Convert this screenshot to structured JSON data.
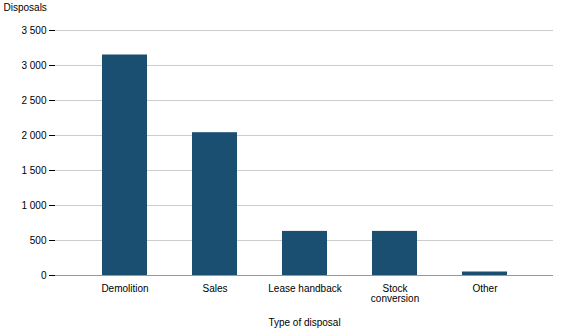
{
  "chart_data": {
    "type": "bar",
    "categories": [
      "Demolition",
      "Sales",
      "Lease handback",
      "Stock\nconversion",
      "Other"
    ],
    "values": [
      3150,
      2040,
      630,
      630,
      50
    ],
    "color": "#1a4f72",
    "ylabel": "Disposals",
    "xlabel": "Type of disposal",
    "ylim": [
      0,
      3500
    ],
    "yticks": [
      0,
      500,
      {
        "value": 1000,
        "label": "1 000"
      },
      {
        "value": 1500,
        "label": "1 500"
      },
      {
        "value": 2000,
        "label": "2 000"
      },
      {
        "value": 2500,
        "label": "2 500"
      },
      {
        "value": 3000,
        "label": "3 000"
      },
      {
        "value": 3500,
        "label": "3 500"
      }
    ],
    "grid": true
  }
}
